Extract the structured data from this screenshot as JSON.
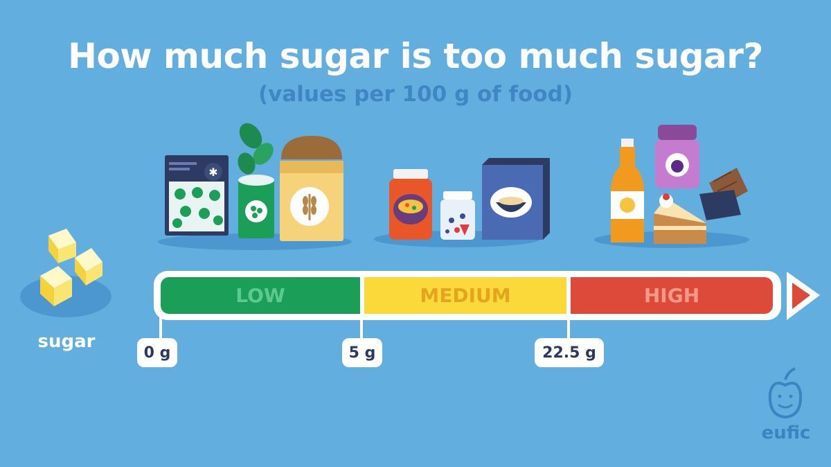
{
  "title": "How much sugar is too much sugar?",
  "subtitle": "(values per 100 g of food)",
  "sugar_label": "sugar",
  "scale": {
    "segments": [
      {
        "label": "LOW",
        "color": "#1a9e58"
      },
      {
        "label": "MEDIUM",
        "color": "#fbd93a"
      },
      {
        "label": "HIGH",
        "color": "#dd4a3a"
      }
    ],
    "thresholds": [
      "0 g",
      "5 g",
      "22.5 g"
    ]
  },
  "logo": "eufic",
  "icons": [
    "sugar-cubes-icon",
    "frozen-vegetables-bag-icon",
    "spinach-can-icon",
    "wholegrain-bread-icon",
    "jam-jar-icon",
    "yogurt-jar-icon",
    "cereal-box-icon",
    "orange-soda-bottle-icon",
    "berry-jam-jar-icon",
    "chocolate-bar-icon",
    "cake-slice-icon",
    "eufic-apple-icon",
    "arrow-right-icon"
  ]
}
